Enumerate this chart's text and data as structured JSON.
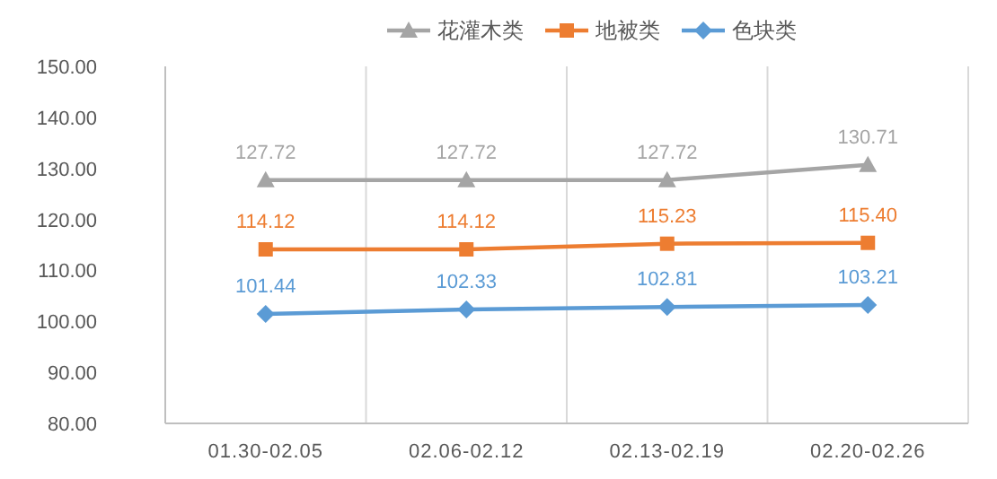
{
  "chart_data": {
    "type": "line",
    "categories": [
      "01.30-02.05",
      "02.06-02.12",
      "02.13-02.19",
      "02.20-02.26"
    ],
    "series": [
      {
        "name": "花灌木类",
        "color": "#a5a5a5",
        "marker": "triangle",
        "values": [
          127.72,
          127.72,
          127.72,
          130.71
        ],
        "value_labels": [
          "127.72",
          "127.72",
          "127.72",
          "130.71"
        ]
      },
      {
        "name": "地被类",
        "color": "#ed7d31",
        "marker": "square",
        "values": [
          114.12,
          114.12,
          115.23,
          115.4
        ],
        "value_labels": [
          "114.12",
          "114.12",
          "115.23",
          "115.40"
        ]
      },
      {
        "name": "色块类",
        "color": "#5b9bd5",
        "marker": "diamond",
        "values": [
          101.44,
          102.33,
          102.81,
          103.21
        ],
        "value_labels": [
          "101.44",
          "102.33",
          "102.81",
          "103.21"
        ]
      }
    ],
    "ylim": [
      80,
      150
    ],
    "yticks": [
      {
        "value": 80,
        "label": "80.00"
      },
      {
        "value": 90,
        "label": "90.00"
      },
      {
        "value": 100,
        "label": "100.00"
      },
      {
        "value": 110,
        "label": "110.00"
      },
      {
        "value": 120,
        "label": "120.00"
      },
      {
        "value": 130,
        "label": "130.00"
      },
      {
        "value": 140,
        "label": "140.00"
      },
      {
        "value": 150,
        "label": "150.00"
      }
    ],
    "grid": "x",
    "legend": "top"
  }
}
